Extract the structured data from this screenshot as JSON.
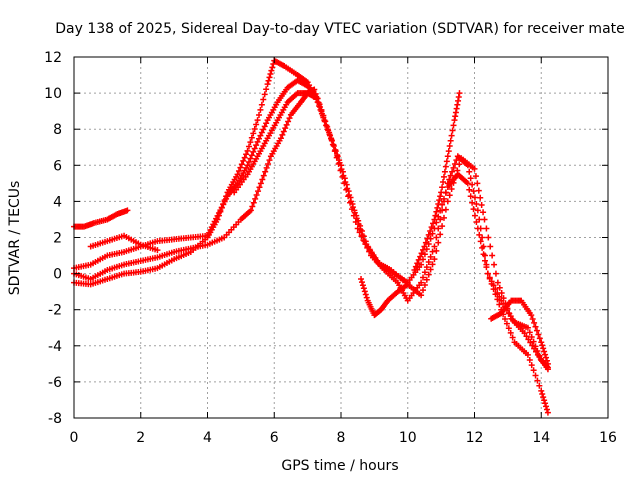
{
  "chart_data": {
    "type": "scatter",
    "title": "Day 138 of 2025, Sidereal Day-to-day VTEC variation (SDTVAR) for receiver mate",
    "xlabel": "GPS time / hours",
    "ylabel": "SDTVAR / TECUs",
    "xlim": [
      0,
      16
    ],
    "ylim": [
      -8,
      12
    ],
    "xticks": [
      "0",
      "2",
      "4",
      "6",
      "8",
      "10",
      "12",
      "14",
      "16"
    ],
    "yticks": [
      "-8",
      "-6",
      "-4",
      "-2",
      "0",
      "2",
      "4",
      "6",
      "8",
      "10",
      "12"
    ],
    "grid": true,
    "marker": "plus",
    "color": "#ff0000",
    "series": [
      {
        "x": [
          0.0,
          0.3,
          0.6,
          1.0,
          1.3,
          1.6
        ],
        "y": [
          2.6,
          2.6,
          2.8,
          3.0,
          3.3,
          3.5
        ]
      },
      {
        "x": [
          0.0,
          0.5,
          1.0,
          1.5,
          2.0,
          2.5,
          3.0,
          3.5,
          4.0,
          4.3,
          4.6,
          4.9,
          5.2,
          5.5,
          5.8,
          6.0,
          6.3,
          6.7,
          7.0,
          7.3,
          7.6,
          8.0,
          8.4,
          8.8,
          9.2,
          9.6,
          10.0,
          10.4,
          10.8,
          11.2,
          11.5,
          11.8,
          12.1,
          12.4,
          12.8,
          13.2,
          13.6,
          14.0,
          14.2
        ],
        "y": [
          -0.5,
          -0.6,
          -0.3,
          0.0,
          0.1,
          0.3,
          0.8,
          1.2,
          2.0,
          3.0,
          4.5,
          5.5,
          6.8,
          8.5,
          10.5,
          11.8,
          11.5,
          11.0,
          10.6,
          9.5,
          8.0,
          6.0,
          3.5,
          1.5,
          0.4,
          0.0,
          -0.5,
          0.5,
          2.5,
          4.8,
          5.5,
          5.0,
          2.5,
          0.0,
          -2.0,
          -3.8,
          -4.5,
          -6.5,
          -7.7
        ]
      },
      {
        "x": [
          0.0,
          0.5,
          1.0,
          1.5,
          2.0,
          2.5,
          3.0,
          3.5,
          4.0,
          4.3,
          4.6,
          4.9,
          5.2,
          5.5,
          5.8,
          6.1,
          6.4,
          6.7,
          7.0,
          7.3,
          7.7,
          8.1,
          8.5,
          8.9,
          9.3,
          9.7,
          10.0,
          10.4,
          10.8,
          11.2,
          11.5,
          11.8,
          12.1,
          12.4,
          12.8,
          13.2,
          13.6,
          14.0,
          14.2
        ],
        "y": [
          0.3,
          0.5,
          1.0,
          1.2,
          1.5,
          1.8,
          1.9,
          2.0,
          2.1,
          3.2,
          4.3,
          5.0,
          6.0,
          7.3,
          8.5,
          9.5,
          10.3,
          10.7,
          10.4,
          9.7,
          7.5,
          5.0,
          2.5,
          1.0,
          0.2,
          -0.5,
          -1.5,
          -0.5,
          1.5,
          5.0,
          6.5,
          6.0,
          3.5,
          0.0,
          -1.5,
          -2.7,
          -3.0,
          -4.8,
          -5.2
        ]
      },
      {
        "x": [
          0.0,
          0.5,
          1.0,
          1.5,
          2.0,
          2.5,
          3.0,
          3.5,
          4.0,
          4.5,
          5.0,
          5.3,
          5.6,
          5.9,
          6.2,
          6.5,
          6.8,
          7.0,
          7.2,
          7.5,
          7.9,
          8.3,
          8.7,
          9.1,
          9.5,
          10.0,
          10.4,
          10.8,
          11.2,
          11.6,
          12.0,
          12.3,
          12.7,
          13.1,
          13.5,
          13.9,
          14.2
        ],
        "y": [
          0.0,
          -0.3,
          0.2,
          0.5,
          0.7,
          0.9,
          1.2,
          1.4,
          1.6,
          2.0,
          3.0,
          3.5,
          5.0,
          6.5,
          7.5,
          8.8,
          9.5,
          10.0,
          10.2,
          8.5,
          6.5,
          4.0,
          1.8,
          0.6,
          0.2,
          -0.6,
          -1.2,
          0.8,
          4.0,
          6.4,
          5.8,
          3.0,
          -0.5,
          -2.5,
          -3.3,
          -4.5,
          -5.3
        ]
      },
      {
        "x": [
          0.5,
          1.0,
          1.5,
          2.0,
          2.5
        ],
        "y": [
          1.5,
          1.8,
          2.1,
          1.6,
          1.3
        ]
      },
      {
        "x": [
          4.8,
          5.2,
          5.5,
          5.8,
          6.1,
          6.4,
          6.7,
          7.0,
          7.2
        ],
        "y": [
          4.5,
          5.5,
          6.5,
          7.5,
          8.5,
          9.5,
          10.0,
          10.0,
          9.8
        ]
      },
      {
        "x": [
          8.6,
          8.8,
          9.0,
          9.2,
          9.4,
          9.7,
          10.0
        ],
        "y": [
          -0.3,
          -1.5,
          -2.3,
          -2.0,
          -1.5,
          -1.0,
          -0.6
        ]
      },
      {
        "x": [
          10.2,
          10.5,
          10.8,
          11.0,
          11.2,
          11.4,
          11.55
        ],
        "y": [
          0.2,
          1.5,
          3.0,
          4.5,
          6.5,
          8.5,
          10.0
        ]
      },
      {
        "x": [
          12.5,
          12.8,
          13.1,
          13.4,
          13.7,
          14.0,
          14.2
        ],
        "y": [
          -2.5,
          -2.2,
          -1.5,
          -1.5,
          -2.3,
          -3.8,
          -5.0
        ]
      }
    ]
  }
}
